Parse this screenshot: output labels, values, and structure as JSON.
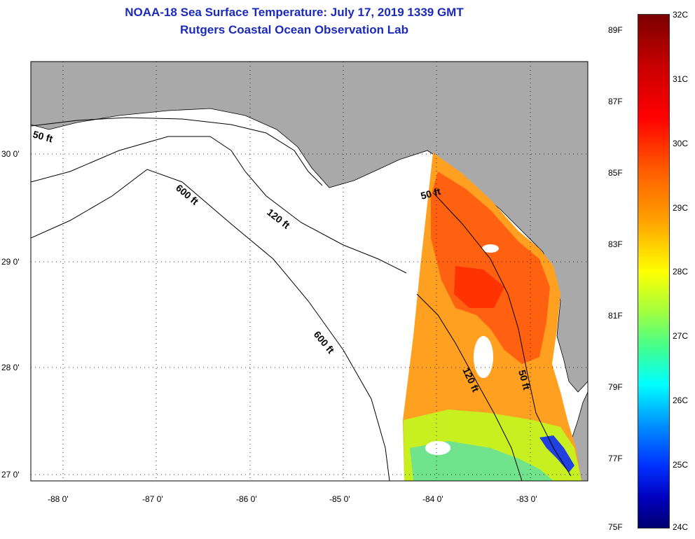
{
  "title": {
    "line1": "NOAA-18 Sea Surface Temperature:  July 17, 2019 1339 GMT",
    "line2": "Rutgers Coastal Ocean Observation Lab"
  },
  "map": {
    "lon_labels": [
      "-88 0'",
      "-87 0'",
      "-86 0'",
      "-85 0'",
      "-84 0'",
      "-83 0'"
    ],
    "lat_labels": [
      "30 0'",
      "29 0'",
      "28 0'",
      "27 0'"
    ],
    "depth_contour_labels": [
      "50 ft",
      "600 ft",
      "120 ft",
      "600 ft",
      "50 ft",
      "120 ft",
      "50 ft"
    ],
    "colors": {
      "land": "#a9a9a9",
      "ocean": "#ffffff",
      "contour": "#000000"
    }
  },
  "colorbar": {
    "celsius_labels": [
      "32C",
      "31C",
      "30C",
      "29C",
      "28C",
      "27C",
      "26C",
      "25C",
      "24C"
    ],
    "fahrenheit_labels": [
      "89F",
      "87F",
      "85F",
      "83F",
      "81F",
      "79F",
      "77F",
      "75F"
    ]
  }
}
